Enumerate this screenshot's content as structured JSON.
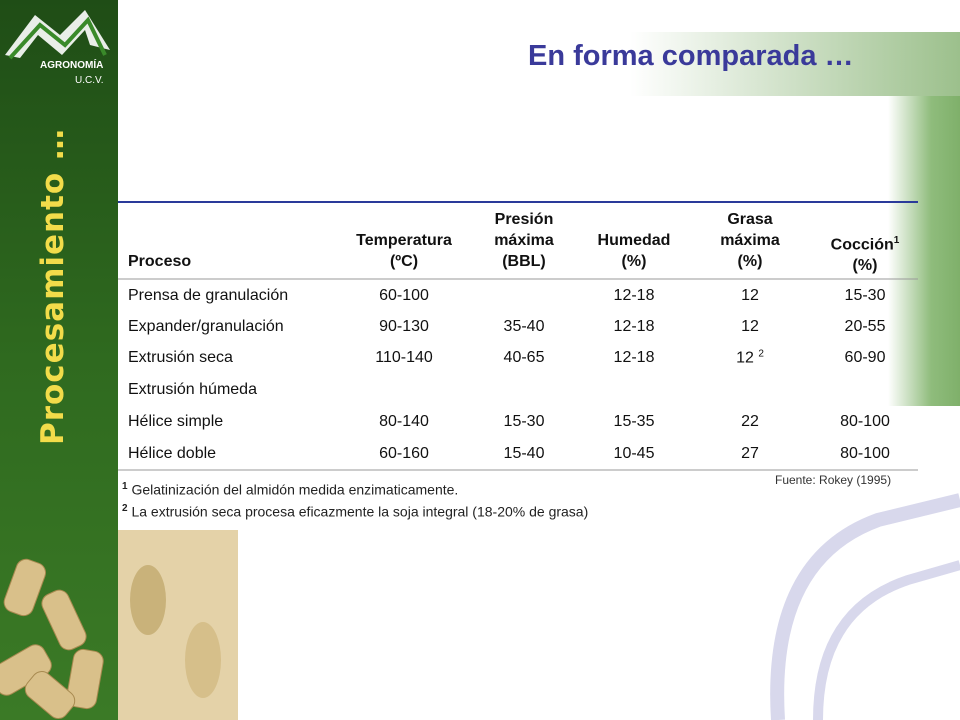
{
  "logo": {
    "name": "AGRONOMÍA",
    "sub": "U.C.V."
  },
  "sidebar_title": "Procesamiento …",
  "title": "En forma comparada …",
  "table": {
    "header": [
      {
        "lines": [
          "Proceso"
        ]
      },
      {
        "lines": [
          "Temperatura",
          "(ºC)"
        ]
      },
      {
        "lines": [
          "Presión",
          "máxima",
          "(BBL)"
        ]
      },
      {
        "lines": [
          "Humedad",
          "(%)"
        ]
      },
      {
        "lines": [
          "Grasa",
          "máxima",
          "(%)"
        ]
      },
      {
        "lines": [
          "Cocción",
          "(%)"
        ],
        "sup": "1"
      }
    ],
    "rows": [
      [
        "Prensa de granulación",
        "60-100",
        null,
        "12-18",
        "12",
        "15-30"
      ],
      [
        "Expander/granulación",
        "90-130",
        "35-40",
        "12-18",
        "12",
        "20-55"
      ],
      [
        "Extrusión seca",
        "110-140",
        "40-65",
        "12-18",
        {
          "text": "12",
          "sup": "2"
        },
        "60-90"
      ],
      [
        "Extrusión húmeda",
        null,
        null,
        null,
        null,
        null
      ],
      [
        "Hélice simple",
        "80-140",
        "15-30",
        "15-35",
        "22",
        "80-100"
      ],
      [
        "Hélice doble",
        "60-160",
        "15-40",
        "10-45",
        "27",
        "80-100"
      ]
    ]
  },
  "source": "Fuente: Rokey (1995)",
  "footnotes": [
    {
      "mark": "1",
      "text": "Gelatinización del almidón medida enzimaticamente."
    },
    {
      "mark": "2",
      "text": "La extrusión seca procesa eficazmente la soja integral (18-20% de grasa)"
    }
  ]
}
